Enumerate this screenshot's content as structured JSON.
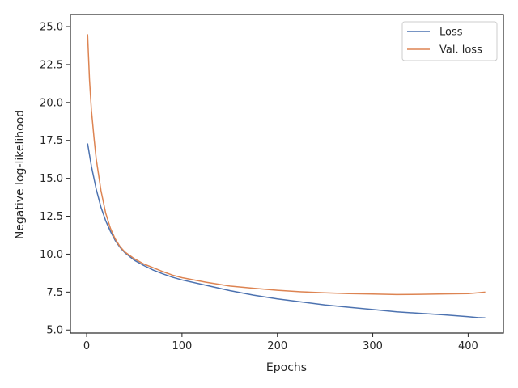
{
  "chart_data": {
    "type": "line",
    "xlabel": "Epochs",
    "ylabel": "Negative log-likelihood",
    "xlim": [
      -17,
      437
    ],
    "ylim": [
      4.8,
      25.8
    ],
    "xticks": [
      0,
      100,
      200,
      300,
      400
    ],
    "yticks": [
      5.0,
      7.5,
      10.0,
      12.5,
      15.0,
      17.5,
      20.0,
      22.5,
      25.0
    ],
    "xtick_labels": [
      "0",
      "100",
      "200",
      "300",
      "400"
    ],
    "ytick_labels": [
      "5.0",
      "7.5",
      "10.0",
      "12.5",
      "15.0",
      "17.5",
      "20.0",
      "22.5",
      "25.0"
    ],
    "grid": false,
    "legend_position": "top-right",
    "series": [
      {
        "name": "Loss",
        "color": "#4c72b0",
        "x": [
          1,
          5,
          10,
          15,
          20,
          25,
          30,
          35,
          40,
          50,
          60,
          70,
          80,
          90,
          100,
          125,
          150,
          175,
          200,
          225,
          250,
          275,
          300,
          325,
          350,
          375,
          400,
          410,
          418
        ],
        "y": [
          17.3,
          15.8,
          14.3,
          13.1,
          12.2,
          11.5,
          10.9,
          10.45,
          10.1,
          9.6,
          9.25,
          8.95,
          8.7,
          8.48,
          8.3,
          7.95,
          7.6,
          7.3,
          7.05,
          6.85,
          6.65,
          6.5,
          6.35,
          6.2,
          6.1,
          6.0,
          5.88,
          5.82,
          5.8
        ]
      },
      {
        "name": "Val. loss",
        "color": "#dd8452",
        "x": [
          1,
          3,
          5,
          8,
          10,
          15,
          20,
          25,
          30,
          35,
          40,
          50,
          60,
          70,
          80,
          90,
          100,
          125,
          150,
          175,
          200,
          225,
          250,
          275,
          300,
          325,
          350,
          375,
          400,
          410,
          418
        ],
        "y": [
          24.5,
          21.5,
          19.5,
          17.5,
          16.3,
          14.2,
          12.7,
          11.7,
          11.0,
          10.5,
          10.15,
          9.7,
          9.35,
          9.1,
          8.85,
          8.62,
          8.45,
          8.15,
          7.9,
          7.75,
          7.62,
          7.52,
          7.45,
          7.4,
          7.37,
          7.34,
          7.35,
          7.38,
          7.4,
          7.45,
          7.5
        ]
      }
    ]
  }
}
